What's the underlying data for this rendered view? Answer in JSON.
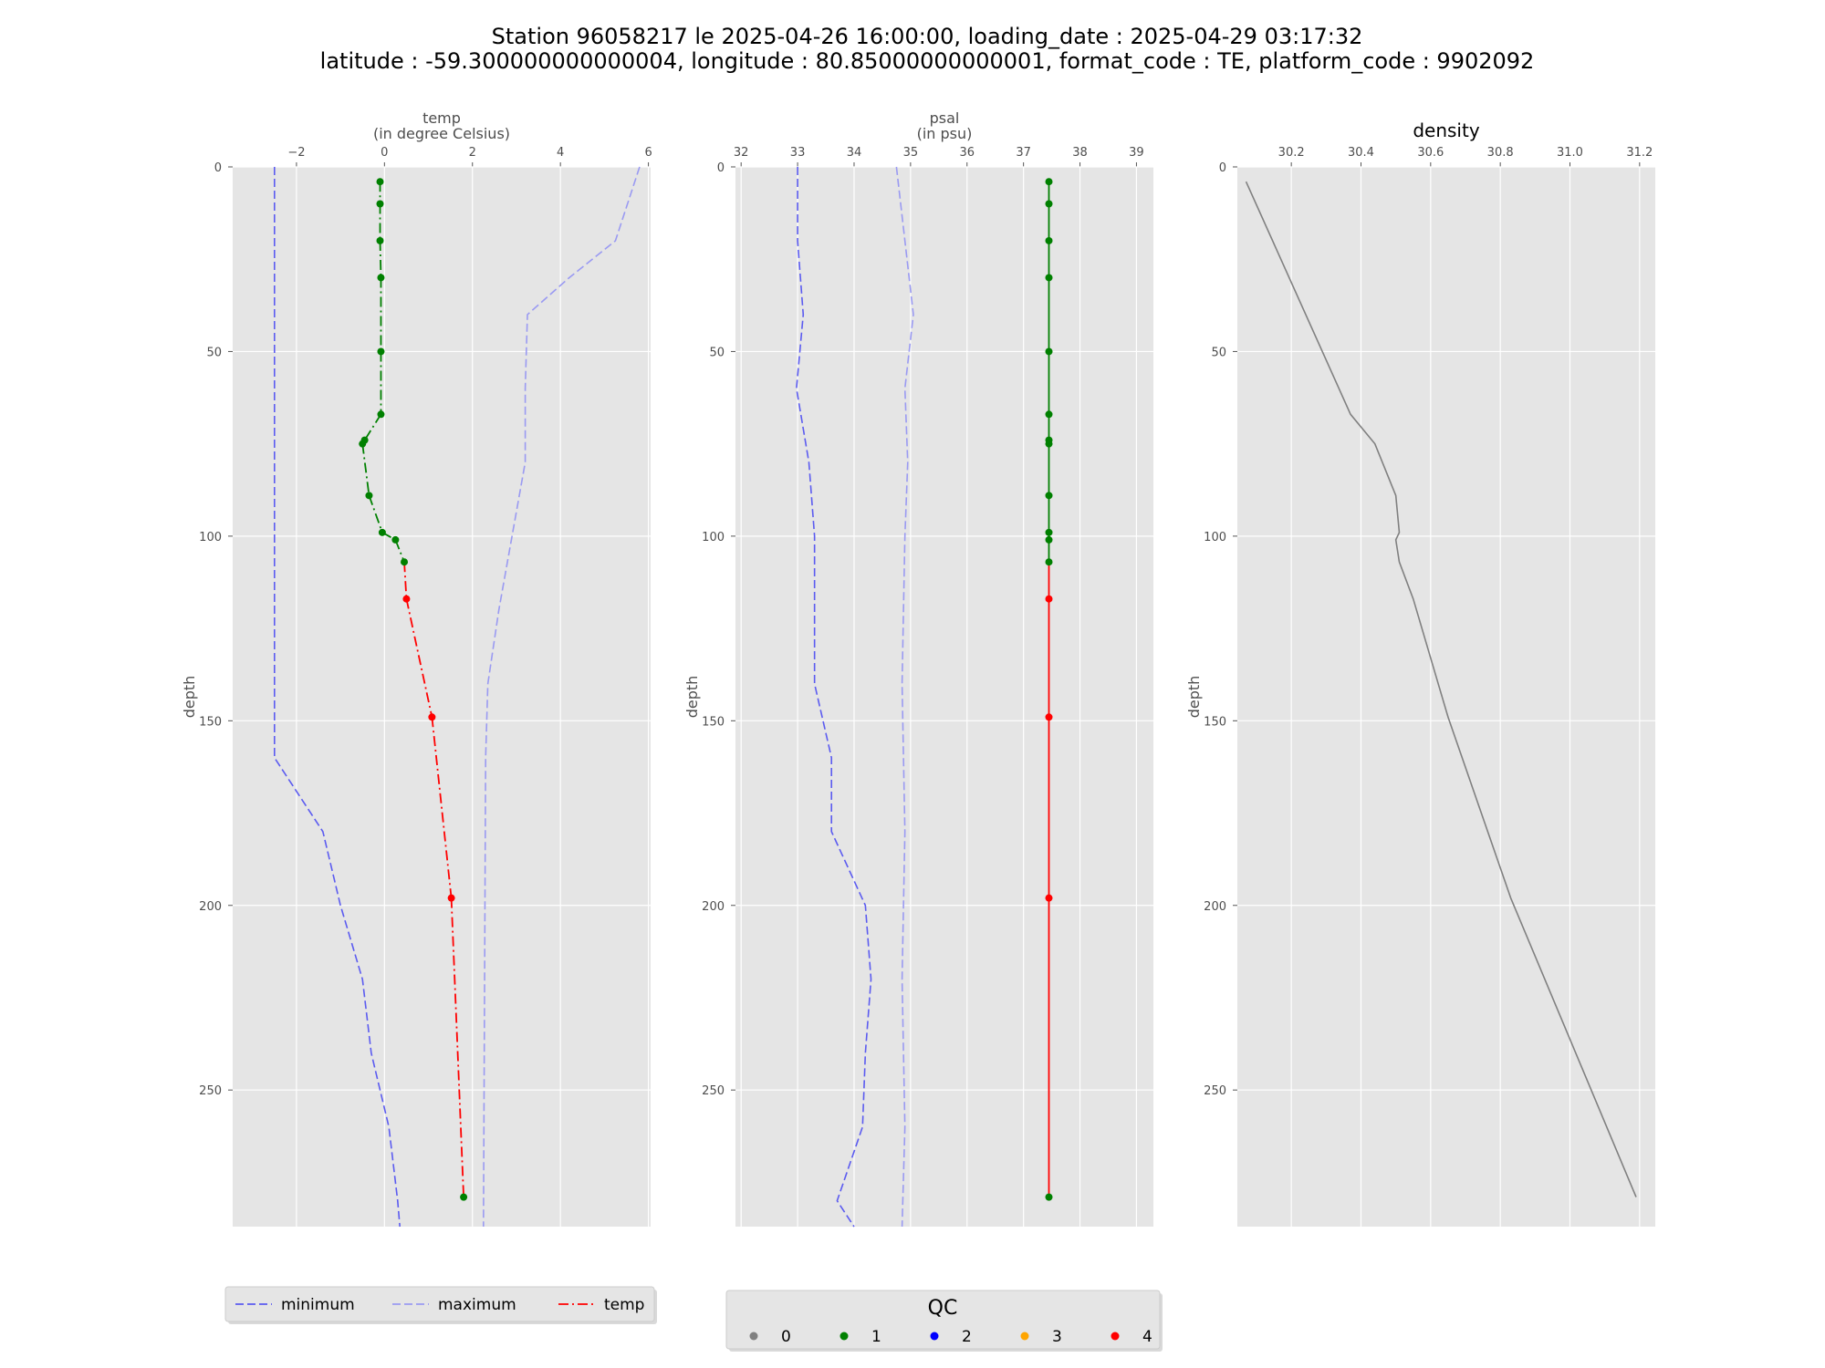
{
  "figure": {
    "title_line1": "Station 96058217 le 2025-04-26 16:00:00, loading_date : 2025-04-29 03:17:32",
    "title_line2": "latitude : -59.300000000000004, longitude : 80.85000000000001, format_code : TE, platform_code : 9902092"
  },
  "colors": {
    "panel_bg": "#e5e5e5",
    "grid": "#ffffff",
    "minimum": "#5b5bf0",
    "maximum": "#9a9af2",
    "temp_line": "#ff0000",
    "psal_line": "#ff0000",
    "density_line": "#808080",
    "qc_0": "#808080",
    "qc_1": "#008000",
    "qc_2": "#0000ff",
    "qc_3": "#ffa500",
    "qc_4": "#ff0000"
  },
  "legend_lines": {
    "entries": [
      {
        "label": "minimum",
        "style": "dashed",
        "color": "#5b5bf0"
      },
      {
        "label": "maximum",
        "style": "dashed",
        "color": "#9a9af2"
      },
      {
        "label": "temp",
        "style": "dashdot",
        "color": "#ff0000"
      }
    ]
  },
  "legend_qc": {
    "title": "QC",
    "entries": [
      {
        "label": "0",
        "color": "#808080"
      },
      {
        "label": "1",
        "color": "#008000"
      },
      {
        "label": "2",
        "color": "#0000ff"
      },
      {
        "label": "3",
        "color": "#ffa500"
      },
      {
        "label": "4",
        "color": "#ff0000"
      }
    ]
  },
  "chart_data": [
    {
      "type": "line",
      "title": "",
      "xlabel_line1": "temp",
      "xlabel_line2": "(in degree Celsius)",
      "ylabel": "depth",
      "xlim": [
        -3.45,
        6.05
      ],
      "ylim": [
        0,
        287
      ],
      "y_inverted": true,
      "xticks": [
        -2,
        0,
        2,
        4,
        6
      ],
      "xtick_labels": [
        "−2",
        "0",
        "2",
        "4",
        "6"
      ],
      "yticks": [
        0,
        50,
        100,
        150,
        200,
        250
      ],
      "grid": true,
      "series": [
        {
          "name": "minimum",
          "style": "dashed",
          "color": "#5b5bf0",
          "x": [
            -2.5,
            -2.5,
            -2.5,
            -2.5,
            -1.4,
            -1.0,
            -0.5,
            -0.3,
            0.1,
            0.3,
            0.35
          ],
          "y": [
            0,
            40,
            100,
            160,
            180,
            200,
            220,
            240,
            260,
            280,
            287
          ]
        },
        {
          "name": "maximum",
          "style": "dashed",
          "color": "#9a9af2",
          "x": [
            5.8,
            5.25,
            4.2,
            3.25,
            3.2,
            3.2,
            2.6,
            2.35,
            2.3,
            2.25
          ],
          "y": [
            0,
            20,
            30,
            40,
            60,
            80,
            120,
            140,
            160,
            287
          ]
        },
        {
          "name": "temp",
          "style": "dashdot",
          "color": "#008000",
          "segment_colors_by_qc": true,
          "x": [
            -0.1,
            -0.1,
            -0.1,
            -0.08,
            -0.08,
            -0.08,
            -0.45,
            -0.5,
            -0.35,
            -0.05,
            0.25,
            0.45,
            0.5,
            1.08,
            1.52,
            1.8
          ],
          "y": [
            4,
            10,
            20,
            30,
            50,
            67,
            74,
            75,
            89,
            99,
            101,
            107,
            117,
            149,
            198,
            279
          ],
          "qc": [
            1,
            1,
            1,
            1,
            1,
            1,
            1,
            1,
            1,
            1,
            1,
            1,
            4,
            4,
            4,
            1
          ]
        }
      ]
    },
    {
      "type": "line",
      "title": "",
      "xlabel_line1": "psal",
      "xlabel_line2": "(in psu)",
      "ylabel": "depth",
      "xlim": [
        31.9,
        39.3
      ],
      "ylim": [
        0,
        287
      ],
      "y_inverted": true,
      "xticks": [
        32,
        33,
        34,
        35,
        36,
        37,
        38,
        39
      ],
      "xtick_labels": [
        "32",
        "33",
        "34",
        "35",
        "36",
        "37",
        "38",
        "39"
      ],
      "yticks": [
        0,
        50,
        100,
        150,
        200,
        250
      ],
      "grid": true,
      "series": [
        {
          "name": "minimum",
          "style": "dashed",
          "color": "#5b5bf0",
          "x": [
            33.0,
            33.0,
            33.1,
            32.98,
            33.2,
            33.3,
            33.3,
            33.6,
            33.6,
            34.2,
            34.3,
            34.2,
            34.15,
            33.7,
            34.0
          ],
          "y": [
            0,
            20,
            40,
            60,
            80,
            100,
            140,
            160,
            180,
            200,
            220,
            240,
            260,
            280,
            287
          ]
        },
        {
          "name": "maximum",
          "style": "dashed",
          "color": "#9a9af2",
          "x": [
            34.75,
            34.9,
            35.05,
            34.9,
            34.95,
            34.9,
            34.85,
            34.9,
            34.85,
            34.9,
            34.85
          ],
          "y": [
            0,
            20,
            40,
            60,
            80,
            100,
            140,
            180,
            220,
            260,
            287
          ]
        },
        {
          "name": "psal",
          "style": "solid",
          "color": "#008000",
          "segment_colors_by_qc": true,
          "x": [
            37.45,
            37.45,
            37.45,
            37.45,
            37.45,
            37.45,
            37.45,
            37.45,
            37.45,
            37.45,
            37.45,
            37.45,
            37.45,
            37.45,
            37.45,
            37.45
          ],
          "y": [
            4,
            10,
            20,
            30,
            50,
            67,
            74,
            75,
            89,
            99,
            101,
            107,
            117,
            149,
            198,
            279
          ],
          "qc": [
            1,
            1,
            1,
            1,
            1,
            1,
            1,
            1,
            1,
            1,
            1,
            1,
            4,
            4,
            4,
            1
          ]
        }
      ]
    },
    {
      "type": "line",
      "title": "density",
      "xlabel_line1": "",
      "xlabel_line2": "",
      "ylabel": "depth",
      "xlim": [
        30.045,
        31.245
      ],
      "ylim": [
        0,
        287
      ],
      "y_inverted": true,
      "xticks": [
        30.2,
        30.4,
        30.6,
        30.8,
        31.0,
        31.2
      ],
      "xtick_labels": [
        "30.2",
        "30.4",
        "30.6",
        "30.8",
        "31.0",
        "31.2"
      ],
      "yticks": [
        0,
        50,
        100,
        150,
        200,
        250
      ],
      "grid": true,
      "series": [
        {
          "name": "density",
          "style": "solid",
          "color": "#808080",
          "x": [
            30.07,
            30.37,
            30.44,
            30.5,
            30.51,
            30.5,
            30.51,
            30.55,
            30.65,
            30.83,
            31.19
          ],
          "y": [
            4,
            67,
            75,
            89,
            99,
            101,
            107,
            117,
            149,
            198,
            279
          ]
        }
      ]
    }
  ]
}
